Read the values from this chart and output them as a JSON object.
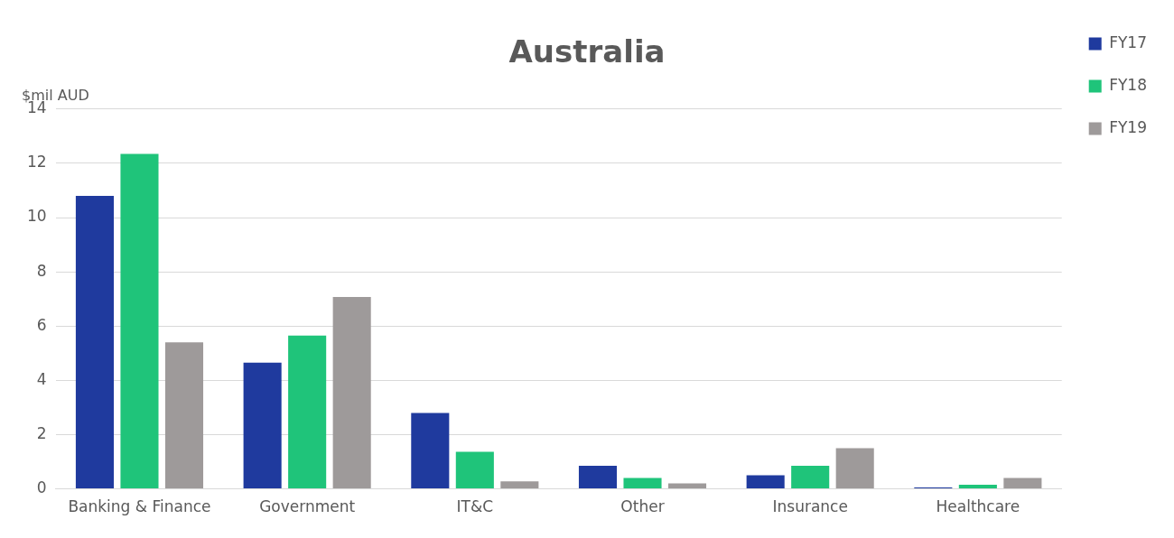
{
  "chart_data": {
    "type": "bar",
    "title": "Australia",
    "ylabel": "$mil AUD",
    "categories": [
      "Banking & Finance",
      "Government",
      "IT&C",
      "Other",
      "Insurance",
      "Healthcare"
    ],
    "series": [
      {
        "name": "FY17",
        "color": "#1f3a9e",
        "values": [
          10.8,
          4.65,
          2.8,
          0.85,
          0.5,
          0.05
        ]
      },
      {
        "name": "FY18",
        "color": "#1fc47a",
        "values": [
          12.35,
          5.65,
          1.37,
          0.4,
          0.85,
          0.15
        ]
      },
      {
        "name": "FY19",
        "color": "#9e9a9a",
        "values": [
          5.4,
          7.07,
          0.28,
          0.2,
          1.5,
          0.4
        ]
      }
    ],
    "ylim": [
      0,
      14
    ],
    "yticks": [
      0,
      2,
      4,
      6,
      8,
      10,
      12,
      14
    ],
    "grid": "y",
    "legend": "top right"
  }
}
